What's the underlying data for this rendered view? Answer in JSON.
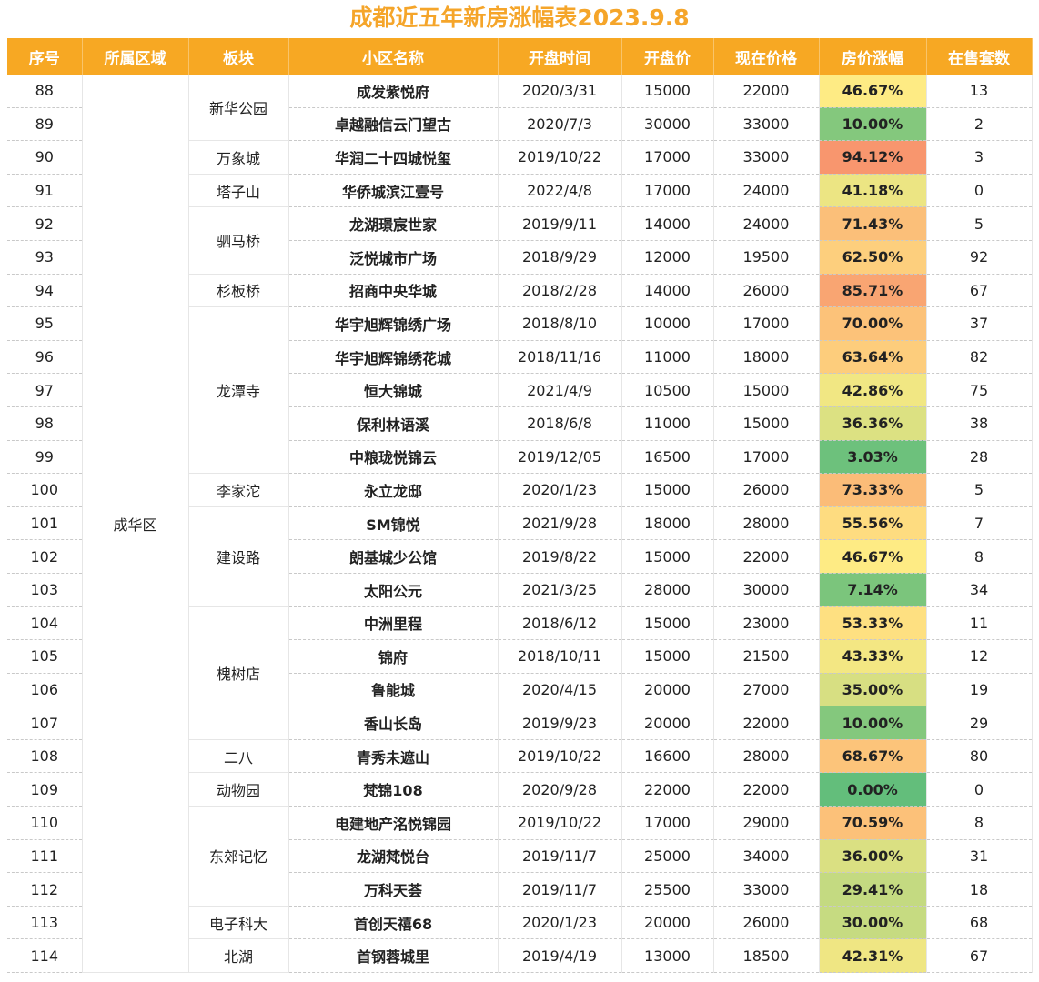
{
  "title": "成都近五年新房涨幅表2023.9.8",
  "headers": [
    "序号",
    "所属区域",
    "板块",
    "小区名称",
    "开盘时间",
    "开盘价",
    "现在价格",
    "房价涨幅",
    "在售套数"
  ],
  "region": "成华区",
  "groups": [
    {
      "board": "新华公园",
      "rows": [
        [
          88,
          "成发紫悦府",
          "2020/3/31",
          15000,
          22000,
          "46.67%",
          13
        ],
        [
          89,
          "卓越融信云门望古",
          "2020/7/3",
          30000,
          33000,
          "10.00%",
          2
        ]
      ]
    },
    {
      "board": "万象城",
      "rows": [
        [
          90,
          "华润二十四城悦玺",
          "2019/10/22",
          17000,
          33000,
          "94.12%",
          3
        ]
      ]
    },
    {
      "board": "塔子山",
      "rows": [
        [
          91,
          "华侨城滨江壹号",
          "2022/4/8",
          17000,
          24000,
          "41.18%",
          0
        ]
      ]
    },
    {
      "board": "驷马桥",
      "rows": [
        [
          92,
          "龙湖璟宸世家",
          "2019/9/11",
          14000,
          24000,
          "71.43%",
          5
        ],
        [
          93,
          "泛悦城市广场",
          "2018/9/29",
          12000,
          19500,
          "62.50%",
          92
        ]
      ]
    },
    {
      "board": "杉板桥",
      "rows": [
        [
          94,
          "招商中央华城",
          "2018/2/28",
          14000,
          26000,
          "85.71%",
          67
        ]
      ]
    },
    {
      "board": "龙潭寺",
      "rows": [
        [
          95,
          "华宇旭辉锦绣广场",
          "2018/8/10",
          10000,
          17000,
          "70.00%",
          37
        ],
        [
          96,
          "华宇旭辉锦绣花城",
          "2018/11/16",
          11000,
          18000,
          "63.64%",
          82
        ],
        [
          97,
          "恒大锦城",
          "2021/4/9",
          10500,
          15000,
          "42.86%",
          75
        ],
        [
          98,
          "保利林语溪",
          "2018/6/8",
          11000,
          15000,
          "36.36%",
          38
        ],
        [
          99,
          "中粮珑悦锦云",
          "2019/12/05",
          16500,
          17000,
          "3.03%",
          28
        ]
      ]
    },
    {
      "board": "李家沱",
      "rows": [
        [
          100,
          "永立龙邸",
          "2020/1/23",
          15000,
          26000,
          "73.33%",
          5
        ]
      ]
    },
    {
      "board": "建设路",
      "rows": [
        [
          101,
          "SM锦悦",
          "2021/9/28",
          18000,
          28000,
          "55.56%",
          7
        ],
        [
          102,
          "朗基城少公馆",
          "2019/8/22",
          15000,
          22000,
          "46.67%",
          8
        ],
        [
          103,
          "太阳公元",
          "2021/3/25",
          28000,
          30000,
          "7.14%",
          34
        ]
      ]
    },
    {
      "board": "槐树店",
      "rows": [
        [
          104,
          "中洲里程",
          "2018/6/12",
          15000,
          23000,
          "53.33%",
          11
        ],
        [
          105,
          "锦府",
          "2018/10/11",
          15000,
          21500,
          "43.33%",
          12
        ],
        [
          106,
          "鲁能城",
          "2020/4/15",
          20000,
          27000,
          "35.00%",
          19
        ],
        [
          107,
          "香山长岛",
          "2019/9/23",
          20000,
          22000,
          "10.00%",
          29
        ]
      ]
    },
    {
      "board": "二八",
      "rows": [
        [
          108,
          "青秀未遮山",
          "2019/10/22",
          16600,
          28000,
          "68.67%",
          80
        ]
      ]
    },
    {
      "board": "动物园",
      "rows": [
        [
          109,
          "梵锦108",
          "2020/9/28",
          22000,
          22000,
          "0.00%",
          0
        ]
      ]
    },
    {
      "board": "东郊记忆",
      "rows": [
        [
          110,
          "电建地产洺悦锦园",
          "2019/10/22",
          17000,
          29000,
          "70.59%",
          8
        ],
        [
          111,
          "龙湖梵悦台",
          "2019/11/7",
          25000,
          34000,
          "36.00%",
          31
        ],
        [
          112,
          "万科天荟",
          "2019/11/7",
          25500,
          33000,
          "29.41%",
          18
        ]
      ]
    },
    {
      "board": "电子科大",
      "rows": [
        [
          113,
          "首创天禧68",
          "2020/1/23",
          20000,
          26000,
          "30.00%",
          68
        ]
      ]
    },
    {
      "board": "北湖",
      "rows": [
        [
          114,
          "首钢蓉城里",
          "2019/4/19",
          13000,
          18500,
          "42.31%",
          67
        ]
      ]
    }
  ]
}
